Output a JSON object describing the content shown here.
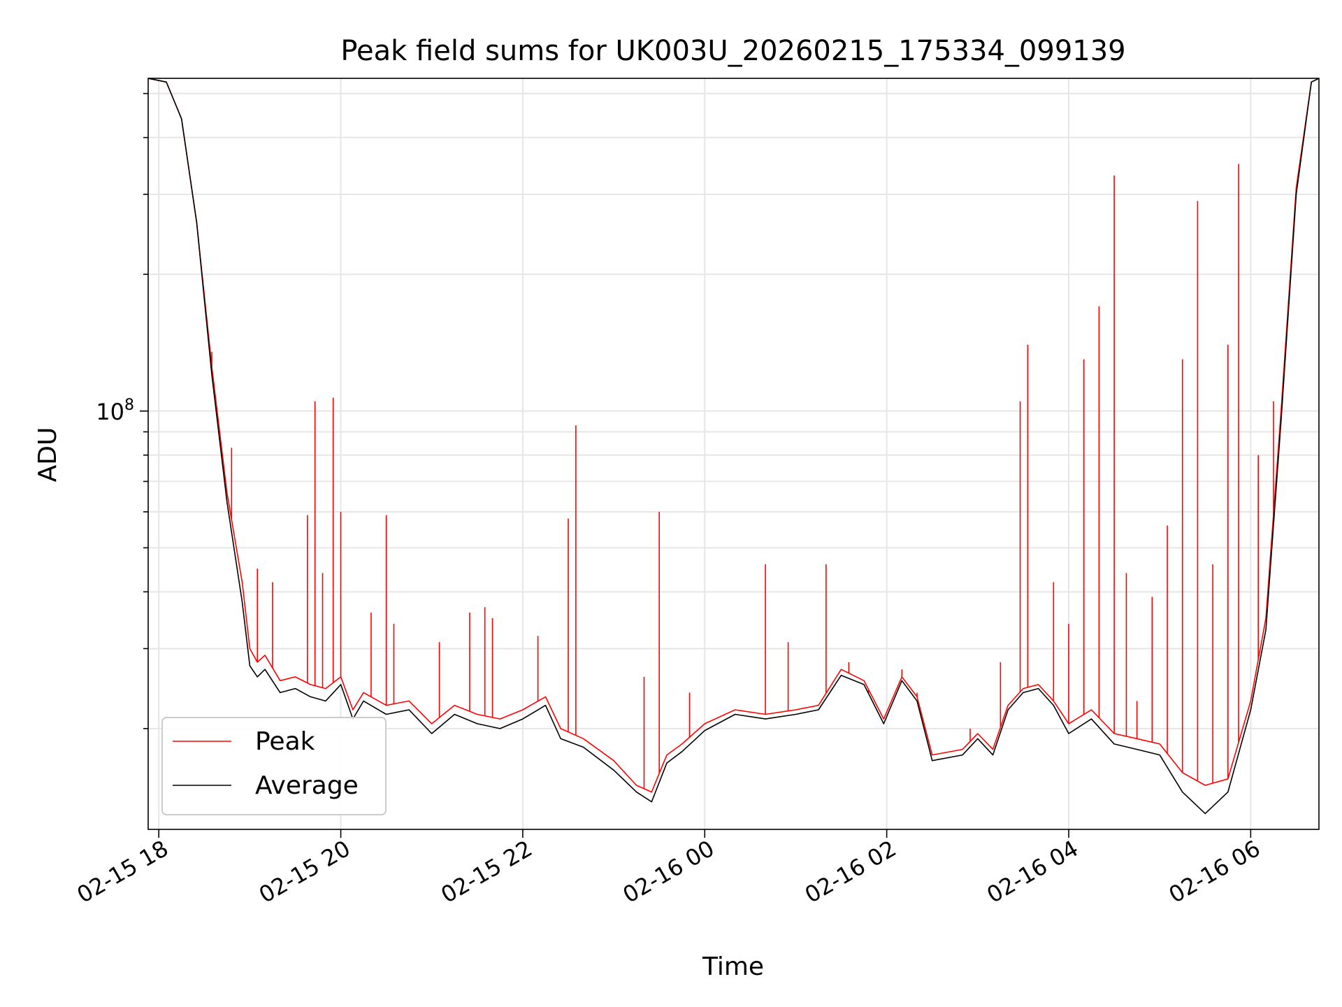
{
  "chart_data": {
    "type": "line",
    "title": "Peak field sums for UK003U_20260215_175334_099139",
    "xlabel": "Time",
    "ylabel": "ADU",
    "x_tick_labels": [
      "02-15 18",
      "02-15 20",
      "02-15 22",
      "02-16 00",
      "02-16 02",
      "02-16 04",
      "02-16 06"
    ],
    "y_tick_labels": [
      {
        "base": "10",
        "exp": "8"
      }
    ],
    "y_scale": "log",
    "xlim": [
      "2026-02-15 17:53",
      "2026-02-16 06:45"
    ],
    "ylim": [
      12000000.0,
      540000000.0
    ],
    "grid": true,
    "legend_position": "lower-left",
    "series": [
      {
        "name": "Peak",
        "color": "#ff0000",
        "points": [
          [
            "2026-02-15 17:53",
            540000000.0
          ],
          [
            "2026-02-15 18:05",
            530000000.0
          ],
          [
            "2026-02-15 18:15",
            440000000.0
          ],
          [
            "2026-02-15 18:25",
            260000000.0
          ],
          [
            "2026-02-15 18:35",
            125000000.0
          ],
          [
            "2026-02-15 18:45",
            66000000.0
          ],
          [
            "2026-02-15 18:55",
            42000000.0
          ],
          [
            "2026-02-15 19:00",
            30000000.0
          ],
          [
            "2026-02-15 19:05",
            28000000.0
          ],
          [
            "2026-02-15 19:10",
            29000000.0
          ],
          [
            "2026-02-15 19:20",
            25500000.0
          ],
          [
            "2026-02-15 19:30",
            26000000.0
          ],
          [
            "2026-02-15 19:40",
            25000000.0
          ],
          [
            "2026-02-15 19:50",
            24500000.0
          ],
          [
            "2026-02-15 20:00",
            26000000.0
          ],
          [
            "2026-02-15 20:08",
            22000000.0
          ],
          [
            "2026-02-15 20:15",
            24000000.0
          ],
          [
            "2026-02-15 20:30",
            22500000.0
          ],
          [
            "2026-02-15 20:45",
            23000000.0
          ],
          [
            "2026-02-15 21:00",
            20500000.0
          ],
          [
            "2026-02-15 21:15",
            22500000.0
          ],
          [
            "2026-02-15 21:30",
            21500000.0
          ],
          [
            "2026-02-15 21:45",
            21000000.0
          ],
          [
            "2026-02-15 22:00",
            22000000.0
          ],
          [
            "2026-02-15 22:15",
            23500000.0
          ],
          [
            "2026-02-15 22:25",
            20000000.0
          ],
          [
            "2026-02-15 22:40",
            19000000.0
          ],
          [
            "2026-02-15 23:00",
            17000000.0
          ],
          [
            "2026-02-15 23:15",
            15000000.0
          ],
          [
            "2026-02-15 23:25",
            14500000.0
          ],
          [
            "2026-02-15 23:35",
            17500000.0
          ],
          [
            "2026-02-15 23:45",
            18500000.0
          ],
          [
            "2026-02-16 00:00",
            20500000.0
          ],
          [
            "2026-02-16 00:20",
            22000000.0
          ],
          [
            "2026-02-16 00:40",
            21500000.0
          ],
          [
            "2026-02-16 01:00",
            22000000.0
          ],
          [
            "2026-02-16 01:15",
            22500000.0
          ],
          [
            "2026-02-16 01:30",
            27000000.0
          ],
          [
            "2026-02-16 01:45",
            25500000.0
          ],
          [
            "2026-02-16 01:58",
            21000000.0
          ],
          [
            "2026-02-16 02:10",
            26000000.0
          ],
          [
            "2026-02-16 02:20",
            23500000.0
          ],
          [
            "2026-02-16 02:30",
            17500000.0
          ],
          [
            "2026-02-16 02:50",
            18000000.0
          ],
          [
            "2026-02-16 03:00",
            19500000.0
          ],
          [
            "2026-02-16 03:10",
            18000000.0
          ],
          [
            "2026-02-16 03:20",
            22500000.0
          ],
          [
            "2026-02-16 03:30",
            24500000.0
          ],
          [
            "2026-02-16 03:40",
            25000000.0
          ],
          [
            "2026-02-16 03:50",
            23000000.0
          ],
          [
            "2026-02-16 04:00",
            20500000.0
          ],
          [
            "2026-02-16 04:15",
            22000000.0
          ],
          [
            "2026-02-16 04:30",
            19500000.0
          ],
          [
            "2026-02-16 04:45",
            19000000.0
          ],
          [
            "2026-02-16 05:00",
            18500000.0
          ],
          [
            "2026-02-16 05:15",
            16000000.0
          ],
          [
            "2026-02-16 05:30",
            15000000.0
          ],
          [
            "2026-02-16 05:45",
            15500000.0
          ],
          [
            "2026-02-16 06:00",
            23000000.0
          ],
          [
            "2026-02-16 06:10",
            35000000.0
          ],
          [
            "2026-02-16 06:20",
            100000000.0
          ],
          [
            "2026-02-16 06:30",
            310000000.0
          ],
          [
            "2026-02-16 06:40",
            530000000.0
          ],
          [
            "2026-02-16 06:45",
            540000000.0
          ]
        ],
        "spikes": [
          [
            "2026-02-15 18:35",
            135000000.0
          ],
          [
            "2026-02-15 18:48",
            83000000.0
          ],
          [
            "2026-02-15 19:05",
            45000000.0
          ],
          [
            "2026-02-15 19:15",
            42000000.0
          ],
          [
            "2026-02-15 19:38",
            59000000.0
          ],
          [
            "2026-02-15 19:43",
            105000000.0
          ],
          [
            "2026-02-15 19:48",
            44000000.0
          ],
          [
            "2026-02-15 19:55",
            107000000.0
          ],
          [
            "2026-02-15 20:00",
            60000000.0
          ],
          [
            "2026-02-15 20:20",
            36000000.0
          ],
          [
            "2026-02-15 20:30",
            59000000.0
          ],
          [
            "2026-02-15 20:35",
            34000000.0
          ],
          [
            "2026-02-15 21:05",
            31000000.0
          ],
          [
            "2026-02-15 21:25",
            36000000.0
          ],
          [
            "2026-02-15 21:35",
            37000000.0
          ],
          [
            "2026-02-15 21:40",
            35000000.0
          ],
          [
            "2026-02-15 22:10",
            32000000.0
          ],
          [
            "2026-02-15 22:30",
            58000000.0
          ],
          [
            "2026-02-15 22:35",
            93000000.0
          ],
          [
            "2026-02-15 23:20",
            26000000.0
          ],
          [
            "2026-02-15 23:30",
            60000000.0
          ],
          [
            "2026-02-15 23:50",
            24000000.0
          ],
          [
            "2026-02-16 00:20",
            22000000.0
          ],
          [
            "2026-02-16 00:40",
            46000000.0
          ],
          [
            "2026-02-16 00:55",
            31000000.0
          ],
          [
            "2026-02-16 01:20",
            46000000.0
          ],
          [
            "2026-02-16 01:35",
            28000000.0
          ],
          [
            "2026-02-16 01:48",
            24000000.0
          ],
          [
            "2026-02-16 02:10",
            27000000.0
          ],
          [
            "2026-02-16 02:20",
            24000000.0
          ],
          [
            "2026-02-16 02:55",
            20000000.0
          ],
          [
            "2026-02-16 03:15",
            28000000.0
          ],
          [
            "2026-02-16 03:28",
            105000000.0
          ],
          [
            "2026-02-16 03:33",
            140000000.0
          ],
          [
            "2026-02-16 03:50",
            42000000.0
          ],
          [
            "2026-02-16 04:00",
            34000000.0
          ],
          [
            "2026-02-16 04:10",
            130000000.0
          ],
          [
            "2026-02-16 04:20",
            170000000.0
          ],
          [
            "2026-02-16 04:30",
            330000000.0
          ],
          [
            "2026-02-16 04:38",
            44000000.0
          ],
          [
            "2026-02-16 04:45",
            23000000.0
          ],
          [
            "2026-02-16 04:55",
            39000000.0
          ],
          [
            "2026-02-16 05:05",
            56000000.0
          ],
          [
            "2026-02-16 05:15",
            130000000.0
          ],
          [
            "2026-02-16 05:25",
            290000000.0
          ],
          [
            "2026-02-16 05:35",
            46000000.0
          ],
          [
            "2026-02-16 05:45",
            140000000.0
          ],
          [
            "2026-02-16 05:52",
            350000000.0
          ],
          [
            "2026-02-16 06:05",
            80000000.0
          ],
          [
            "2026-02-16 06:15",
            105000000.0
          ]
        ]
      },
      {
        "name": "Average",
        "color": "#000000",
        "points": [
          [
            "2026-02-15 17:53",
            540000000.0
          ],
          [
            "2026-02-15 18:05",
            530000000.0
          ],
          [
            "2026-02-15 18:15",
            440000000.0
          ],
          [
            "2026-02-15 18:25",
            260000000.0
          ],
          [
            "2026-02-15 18:35",
            120000000.0
          ],
          [
            "2026-02-15 18:45",
            63000000.0
          ],
          [
            "2026-02-15 18:55",
            38000000.0
          ],
          [
            "2026-02-15 19:00",
            27500000.0
          ],
          [
            "2026-02-15 19:05",
            26000000.0
          ],
          [
            "2026-02-15 19:10",
            27000000.0
          ],
          [
            "2026-02-15 19:20",
            24000000.0
          ],
          [
            "2026-02-15 19:30",
            24500000.0
          ],
          [
            "2026-02-15 19:40",
            23500000.0
          ],
          [
            "2026-02-15 19:50",
            23000000.0
          ],
          [
            "2026-02-15 20:00",
            25000000.0
          ],
          [
            "2026-02-15 20:08",
            21000000.0
          ],
          [
            "2026-02-15 20:15",
            23000000.0
          ],
          [
            "2026-02-15 20:30",
            21500000.0
          ],
          [
            "2026-02-15 20:45",
            22000000.0
          ],
          [
            "2026-02-15 21:00",
            19500000.0
          ],
          [
            "2026-02-15 21:15",
            21500000.0
          ],
          [
            "2026-02-15 21:30",
            20500000.0
          ],
          [
            "2026-02-15 21:45",
            20000000.0
          ],
          [
            "2026-02-15 22:00",
            21000000.0
          ],
          [
            "2026-02-15 22:15",
            22500000.0
          ],
          [
            "2026-02-15 22:25",
            19000000.0
          ],
          [
            "2026-02-15 22:40",
            18200000.0
          ],
          [
            "2026-02-15 23:00",
            16200000.0
          ],
          [
            "2026-02-15 23:15",
            14500000.0
          ],
          [
            "2026-02-15 23:25",
            13800000.0
          ],
          [
            "2026-02-15 23:35",
            16800000.0
          ],
          [
            "2026-02-15 23:45",
            17800000.0
          ],
          [
            "2026-02-16 00:00",
            19800000.0
          ],
          [
            "2026-02-16 00:20",
            21500000.0
          ],
          [
            "2026-02-16 00:40",
            21000000.0
          ],
          [
            "2026-02-16 01:00",
            21500000.0
          ],
          [
            "2026-02-16 01:15",
            22000000.0
          ],
          [
            "2026-02-16 01:30",
            26200000.0
          ],
          [
            "2026-02-16 01:45",
            25000000.0
          ],
          [
            "2026-02-16 01:58",
            20500000.0
          ],
          [
            "2026-02-16 02:10",
            25500000.0
          ],
          [
            "2026-02-16 02:20",
            23000000.0
          ],
          [
            "2026-02-16 02:30",
            17000000.0
          ],
          [
            "2026-02-16 02:50",
            17500000.0
          ],
          [
            "2026-02-16 03:00",
            19000000.0
          ],
          [
            "2026-02-16 03:10",
            17500000.0
          ],
          [
            "2026-02-16 03:20",
            22000000.0
          ],
          [
            "2026-02-16 03:30",
            24000000.0
          ],
          [
            "2026-02-16 03:40",
            24500000.0
          ],
          [
            "2026-02-16 03:50",
            22500000.0
          ],
          [
            "2026-02-16 04:00",
            19500000.0
          ],
          [
            "2026-02-16 04:15",
            21000000.0
          ],
          [
            "2026-02-16 04:30",
            18500000.0
          ],
          [
            "2026-02-16 04:45",
            18000000.0
          ],
          [
            "2026-02-16 05:00",
            17500000.0
          ],
          [
            "2026-02-16 05:15",
            14500000.0
          ],
          [
            "2026-02-16 05:30",
            13000000.0
          ],
          [
            "2026-02-16 05:45",
            14500000.0
          ],
          [
            "2026-02-16 06:00",
            22000000.0
          ],
          [
            "2026-02-16 06:10",
            33000000.0
          ],
          [
            "2026-02-16 06:20",
            95000000.0
          ],
          [
            "2026-02-16 06:30",
            300000000.0
          ],
          [
            "2026-02-16 06:40",
            530000000.0
          ],
          [
            "2026-02-16 06:45",
            540000000.0
          ]
        ]
      }
    ]
  }
}
